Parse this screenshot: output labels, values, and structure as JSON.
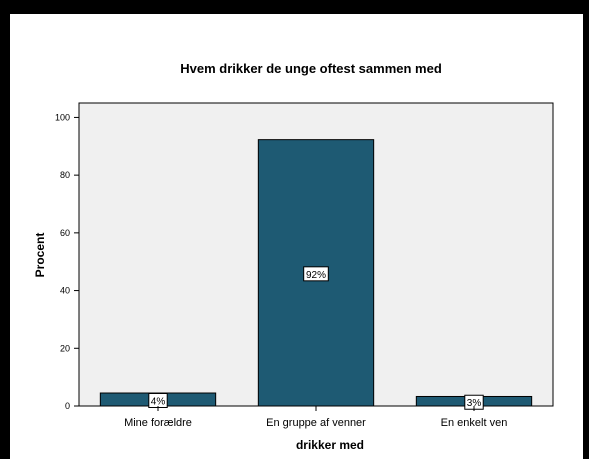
{
  "chart_data": {
    "type": "bar",
    "title": "Hvem drikker de unge oftest sammen med",
    "xlabel": "drikker med",
    "ylabel": "Procent",
    "categories": [
      "Mine forældre",
      "En gruppe af venner",
      "En enkelt ven"
    ],
    "values": [
      4.5,
      92.3,
      3.3
    ],
    "data_labels": [
      "4%",
      "92%",
      "3%"
    ],
    "ylim": [
      0,
      105
    ],
    "yticks": [
      0,
      20,
      40,
      60,
      80,
      100
    ],
    "grid": false,
    "legend": "none",
    "colors": {
      "bar": "#1e5a73",
      "plot_bg": "#f0f0f0",
      "border": "#000000"
    }
  }
}
